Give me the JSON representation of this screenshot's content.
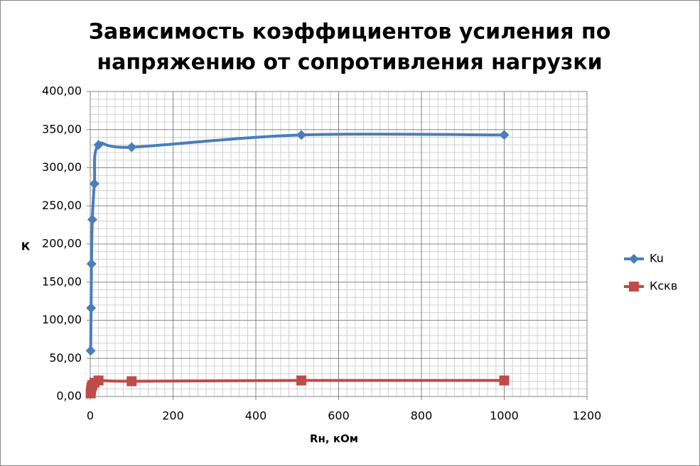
{
  "chart_data": {
    "type": "scatter-smooth",
    "title": [
      "Зависимость коэффициентов усиления по",
      "напряжению от сопротивления нагрузки"
    ],
    "x_label": "Rн, кОм",
    "y_label": "К",
    "x": [
      1,
      2,
      3,
      5,
      10,
      20,
      100,
      510,
      1000
    ],
    "series": [
      {
        "name": "Ku",
        "color": "#4a7ebb",
        "marker": "diamond",
        "values": [
          60,
          116,
          174,
          232,
          279,
          330,
          327,
          343,
          343
        ]
      },
      {
        "name": "Кскв",
        "color": "#be4b48",
        "marker": "square",
        "values": [
          4,
          8,
          12,
          15,
          18,
          21,
          20,
          21,
          21
        ]
      }
    ],
    "xlim": [
      0,
      1200
    ],
    "xticks": [
      0,
      200,
      400,
      600,
      800,
      1000,
      1200
    ],
    "ylim": [
      0,
      400
    ],
    "yticks": [
      {
        "value": 0,
        "label": "0,00"
      },
      {
        "value": 50,
        "label": "50,00"
      },
      {
        "value": 100,
        "label": "100,00"
      },
      {
        "value": 150,
        "label": "150,00"
      },
      {
        "value": 200,
        "label": "200,00"
      },
      {
        "value": 250,
        "label": "250,00"
      },
      {
        "value": 300,
        "label": "300,00"
      },
      {
        "value": 350,
        "label": "350,00"
      },
      {
        "value": 400,
        "label": "400,00"
      }
    ],
    "grid": true,
    "legend": "right"
  }
}
